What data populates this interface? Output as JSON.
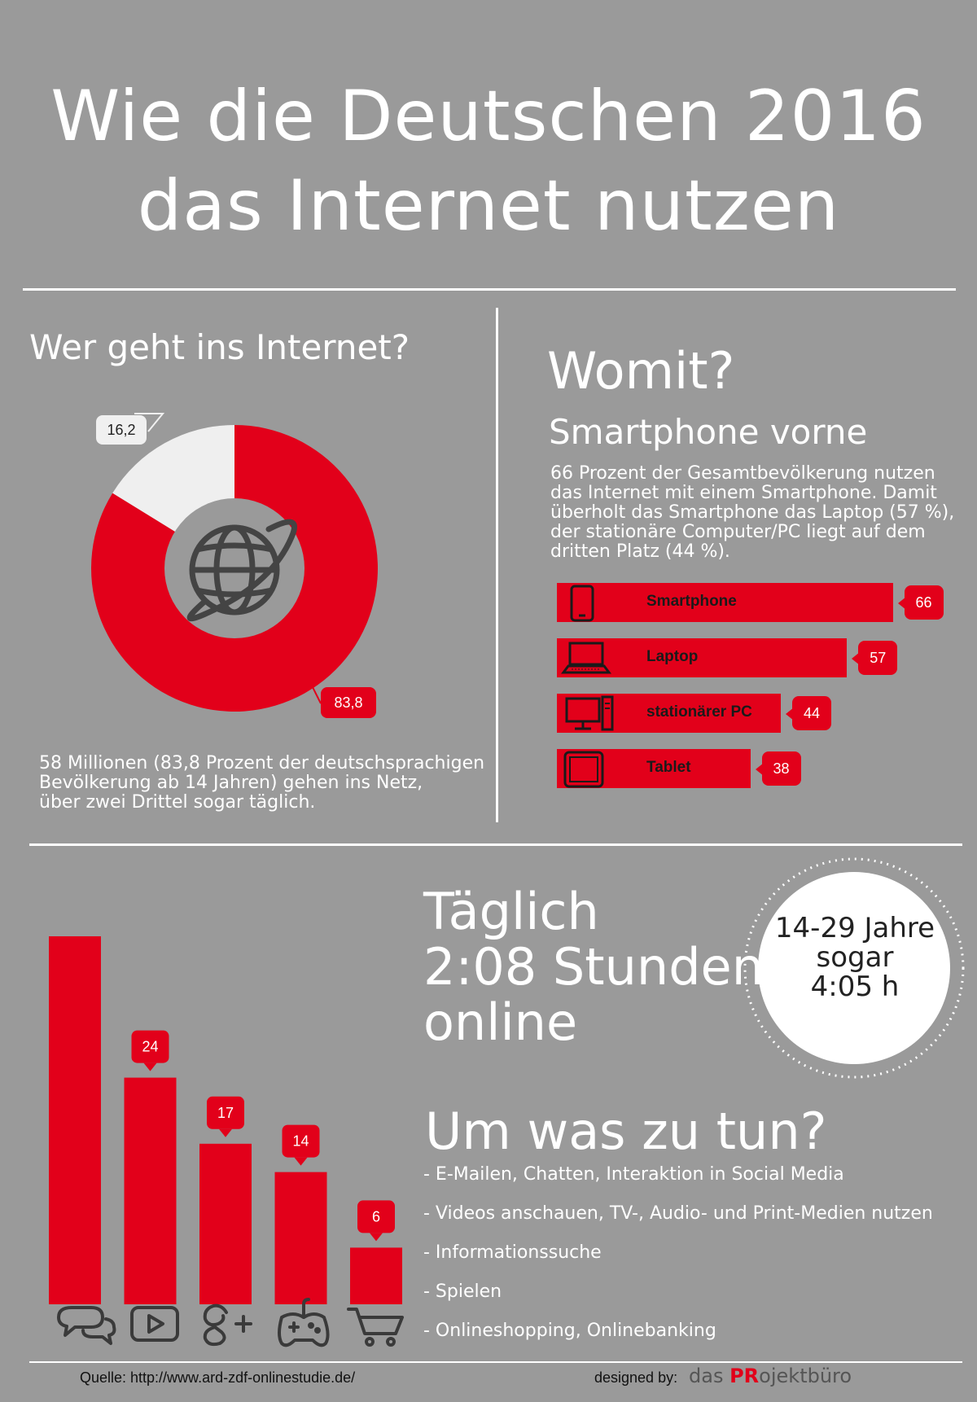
{
  "title": {
    "line1": "Wie die Deutschen 2016",
    "line2": "das Internet nutzen"
  },
  "who": {
    "heading": "Wer geht ins Internet?",
    "online_label": "83,8",
    "offline_label": "16,2",
    "description": [
      "58 Millionen (83,8 Prozent der deutschsprachigen",
      "Bevölkerung ab 14 Jahren) gehen ins Netz,",
      "über zwei Drittel sogar täglich."
    ],
    "center_icon": "globe-icon"
  },
  "devices": {
    "heading": "Womit?",
    "subheading": "Smartphone vorne",
    "description": [
      "66 Prozent der Gesamtbevölkerung nutzen",
      "das Internet mit einem Smartphone. Damit",
      "überholt das Smartphone das Laptop (57 %),",
      "der stationäre Computer/PC liegt auf dem",
      "dritten Platz (44 %)."
    ],
    "items": [
      {
        "label": "Smartphone",
        "value_text": "66",
        "icon": "smartphone-icon"
      },
      {
        "label": "Laptop",
        "value_text": "57",
        "icon": "laptop-icon"
      },
      {
        "label": "stationärer PC",
        "value_text": "44",
        "icon": "desktop-pc-icon"
      },
      {
        "label": "Tablet",
        "value_text": "38",
        "icon": "tablet-icon"
      }
    ]
  },
  "daily": {
    "line1": "Täglich",
    "line2": "2:08 Stunden",
    "line3": "online",
    "circle_line1": "14-29 Jahre",
    "circle_line2": "sogar",
    "circle_line3": "4:05 h"
  },
  "activities": {
    "heading": "Um was zu tun?",
    "items": [
      "- E-Mailen, Chatten, Interaktion in Social Media",
      "- Videos anschauen, TV-, Audio- und Print-Medien nutzen",
      "- Informationssuche",
      "- Spielen",
      "- Onlineshopping, Onlinebanking"
    ]
  },
  "chart_data": [
    {
      "type": "pie",
      "labels": [
        "83,8",
        "16,2"
      ],
      "values": [
        83.8,
        16.2
      ],
      "colors": [
        "#e2001a",
        "#efefef"
      ],
      "title": ""
    },
    {
      "type": "bar",
      "categories": [
        "Smartphone",
        "Laptop",
        "stationärer PC",
        "Tablet"
      ],
      "values": [
        66,
        57,
        44,
        38
      ],
      "title": ""
    },
    {
      "type": "bar",
      "categories": [
        "chat-icon",
        "video-icon",
        "google-plus-icon",
        "gamepad-icon",
        "shopping-cart-icon"
      ],
      "values": [
        39,
        24,
        17,
        14,
        6
      ],
      "title": ""
    }
  ],
  "colors": {
    "accent": "#e2001a",
    "background": "#9a9a9a",
    "text": "#ffffff"
  },
  "footer": {
    "source": "Quelle: http://www.ard-zdf-onlinestudie.de/",
    "designed_by": "designed by:",
    "brand_prefix": "das",
    "brand_pr": "PR",
    "brand_suffix": "ojektbüro"
  }
}
